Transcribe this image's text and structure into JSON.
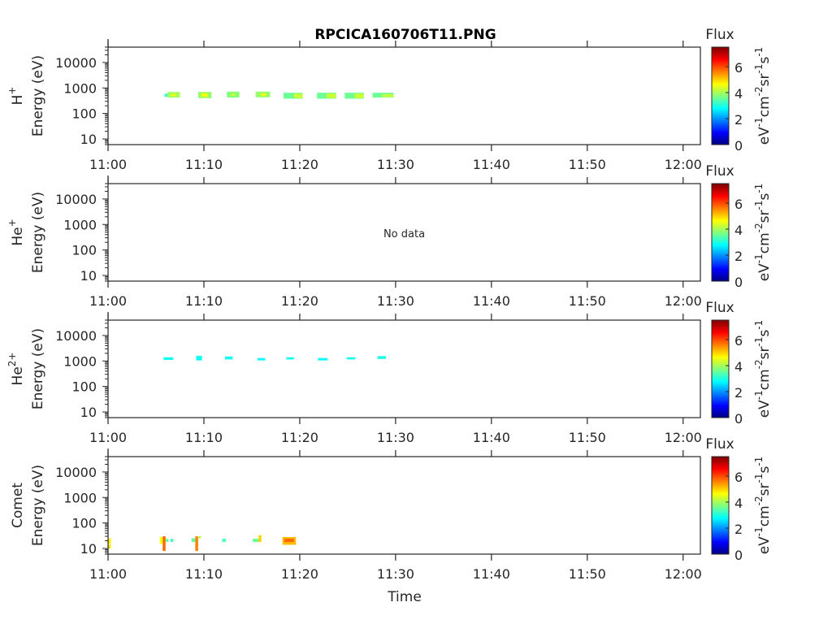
{
  "chart_data": {
    "type": "heatmap",
    "title": "RPCICA160706T11.PNG",
    "xlabel": "Time",
    "x_tick_labels": [
      "11:00",
      "11:10",
      "11:20",
      "11:30",
      "11:40",
      "11:50",
      "12:00"
    ],
    "x_range_minutes_after_1100": [
      0,
      61.8
    ],
    "y_scale": "log",
    "y_tick_labels": [
      "10",
      "100",
      "1000",
      "10000"
    ],
    "y_ticks": [
      10,
      100,
      1000,
      10000
    ],
    "ylim": [
      6,
      40000
    ],
    "ylabel": "Energy (eV)",
    "colorbar": {
      "title": "Flux",
      "unit_parts": [
        [
          "eV",
          "-1"
        ],
        [
          "cm",
          "-2"
        ],
        [
          "sr",
          "-1"
        ],
        [
          "s",
          "-1"
        ]
      ],
      "range": [
        0,
        7.5
      ],
      "tick_labels": [
        "0",
        "2",
        "4",
        "6"
      ],
      "ticks": [
        0,
        2,
        4,
        6
      ],
      "colormap": "jet"
    },
    "panels": [
      {
        "species": "H",
        "charge": "+",
        "note": "",
        "cells": [
          [
            5.9,
            6.2,
            450,
            600,
            3.2
          ],
          [
            6.2,
            7.5,
            420,
            700,
            4.0
          ],
          [
            6.6,
            7.1,
            480,
            580,
            4.6
          ],
          [
            9.4,
            10.8,
            400,
            700,
            3.9
          ],
          [
            9.7,
            10.4,
            450,
            620,
            4.6
          ],
          [
            12.4,
            13.7,
            420,
            720,
            3.8
          ],
          [
            12.9,
            13.3,
            500,
            600,
            4.5
          ],
          [
            15.4,
            16.9,
            430,
            720,
            3.9
          ],
          [
            15.9,
            16.5,
            480,
            620,
            4.5
          ],
          [
            18.3,
            20.3,
            380,
            650,
            3.6
          ],
          [
            19.4,
            20.3,
            400,
            600,
            4.3
          ],
          [
            21.8,
            23.8,
            380,
            650,
            3.6
          ],
          [
            22.8,
            23.8,
            400,
            600,
            4.3
          ],
          [
            24.7,
            26.7,
            380,
            650,
            3.6
          ],
          [
            25.7,
            26.7,
            400,
            600,
            4.3
          ],
          [
            27.6,
            29.8,
            420,
            650,
            3.6
          ],
          [
            28.6,
            29.8,
            430,
            580,
            4.2
          ]
        ]
      },
      {
        "species": "He",
        "charge": "+",
        "note": "No data",
        "cells": []
      },
      {
        "species": "He",
        "charge": "2+",
        "note": "",
        "cells": [
          [
            5.8,
            6.8,
            1100,
            1400,
            2.9
          ],
          [
            9.2,
            9.8,
            1050,
            1600,
            2.9
          ],
          [
            12.2,
            13.0,
            1150,
            1500,
            2.9
          ],
          [
            15.6,
            16.4,
            1050,
            1300,
            2.8
          ],
          [
            18.6,
            19.4,
            1150,
            1400,
            2.9
          ],
          [
            21.9,
            22.9,
            1050,
            1300,
            2.8
          ],
          [
            24.9,
            25.8,
            1150,
            1400,
            2.9
          ],
          [
            28.1,
            29.0,
            1200,
            1550,
            3.0
          ]
        ]
      },
      {
        "species": "Comet",
        "charge": "",
        "note": "",
        "cells": [
          [
            0,
            0.3,
            15,
            25,
            4.8
          ],
          [
            0,
            0.3,
            10,
            14,
            4.9
          ],
          [
            5.4,
            5.7,
            15,
            28,
            4.6
          ],
          [
            5.7,
            6.0,
            8,
            30,
            5.8
          ],
          [
            6.0,
            6.3,
            18,
            24,
            3.6
          ],
          [
            6.5,
            6.8,
            18,
            24,
            3.3
          ],
          [
            8.7,
            9.1,
            18,
            25,
            3.5
          ],
          [
            9.1,
            9.4,
            8,
            30,
            5.6
          ],
          [
            9.4,
            9.7,
            25,
            30,
            4.2
          ],
          [
            11.9,
            12.3,
            18,
            24,
            3.4
          ],
          [
            15.1,
            15.7,
            18,
            24,
            3.6
          ],
          [
            15.7,
            16.0,
            18,
            33,
            5.0
          ],
          [
            18.2,
            19.6,
            14,
            28,
            5.2
          ],
          [
            18.4,
            19.4,
            18,
            24,
            5.8
          ]
        ]
      }
    ]
  }
}
